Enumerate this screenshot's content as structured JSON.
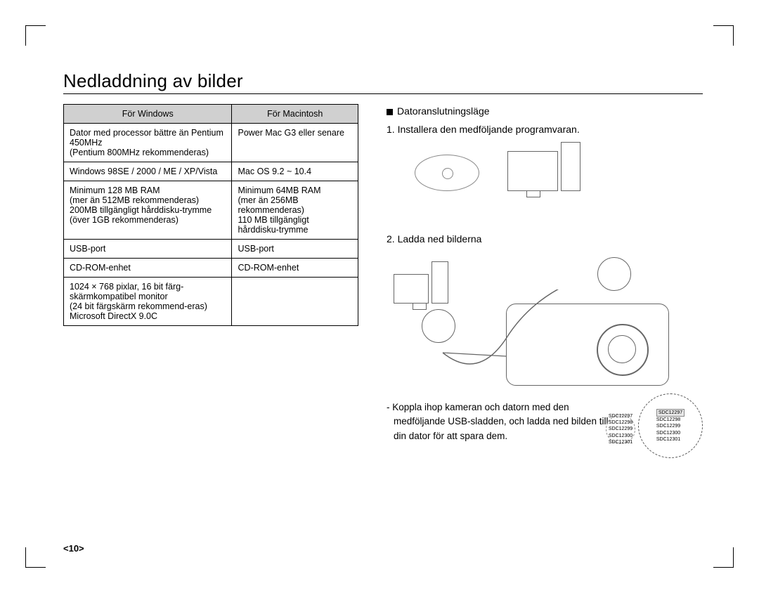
{
  "title": "Nedladdning av bilder",
  "table": {
    "header_win": "För Windows",
    "header_mac": "För Macintosh",
    "rows": [
      {
        "win": "Dator med processor bättre än Pentium 450MHz\n(Pentium 800MHz rekommenderas)",
        "mac": "Power Mac G3 eller senare"
      },
      {
        "win": "Windows 98SE / 2000 / ME / XP/Vista",
        "mac": "Mac OS 9.2 ~ 10.4"
      },
      {
        "win": "Minimum 128 MB RAM\n(mer än 512MB rekommenderas)\n200MB tillgängligt hårddisku-trymme\n(över 1GB rekommenderas)",
        "mac": "Minimum 64MB RAM\n(mer än 256MB rekommenderas)\n110 MB tillgängligt hårddisku-trymme"
      },
      {
        "win": "USB-port",
        "mac": "USB-port"
      },
      {
        "win": "CD-ROM-enhet",
        "mac": "CD-ROM-enhet"
      },
      {
        "win": "1024 × 768 pixlar, 16 bit färg-skärmkompatibel monitor\n(24 bit färgskärm rekommend-eras)\nMicrosoft DirectX 9.0C",
        "mac": ""
      }
    ]
  },
  "right": {
    "section_label": "Datoranslutningsläge",
    "step1": "1. Installera den medföljande programvaran.",
    "step2": "2. Ladda ned bilderna",
    "note": "- Koppla ihop kameran och datorn med den medföljande USB-sladden, och ladda ned bilden till din dator för att spara dem."
  },
  "zoom": {
    "large_items": [
      "SDC12297",
      "SDC12298",
      "SDC12299",
      "SDC12300",
      "SDC12301"
    ],
    "large_selected_index": 0,
    "small_items": [
      "SDC12297",
      "SDC12298",
      "SDC12299",
      "SDC12300",
      "SDC12301"
    ]
  },
  "pagenum": "<10>",
  "colors": {
    "header_bg": "#d0d0d0",
    "border": "#000000",
    "illustration_line": "#666666",
    "dash": "#555555"
  }
}
